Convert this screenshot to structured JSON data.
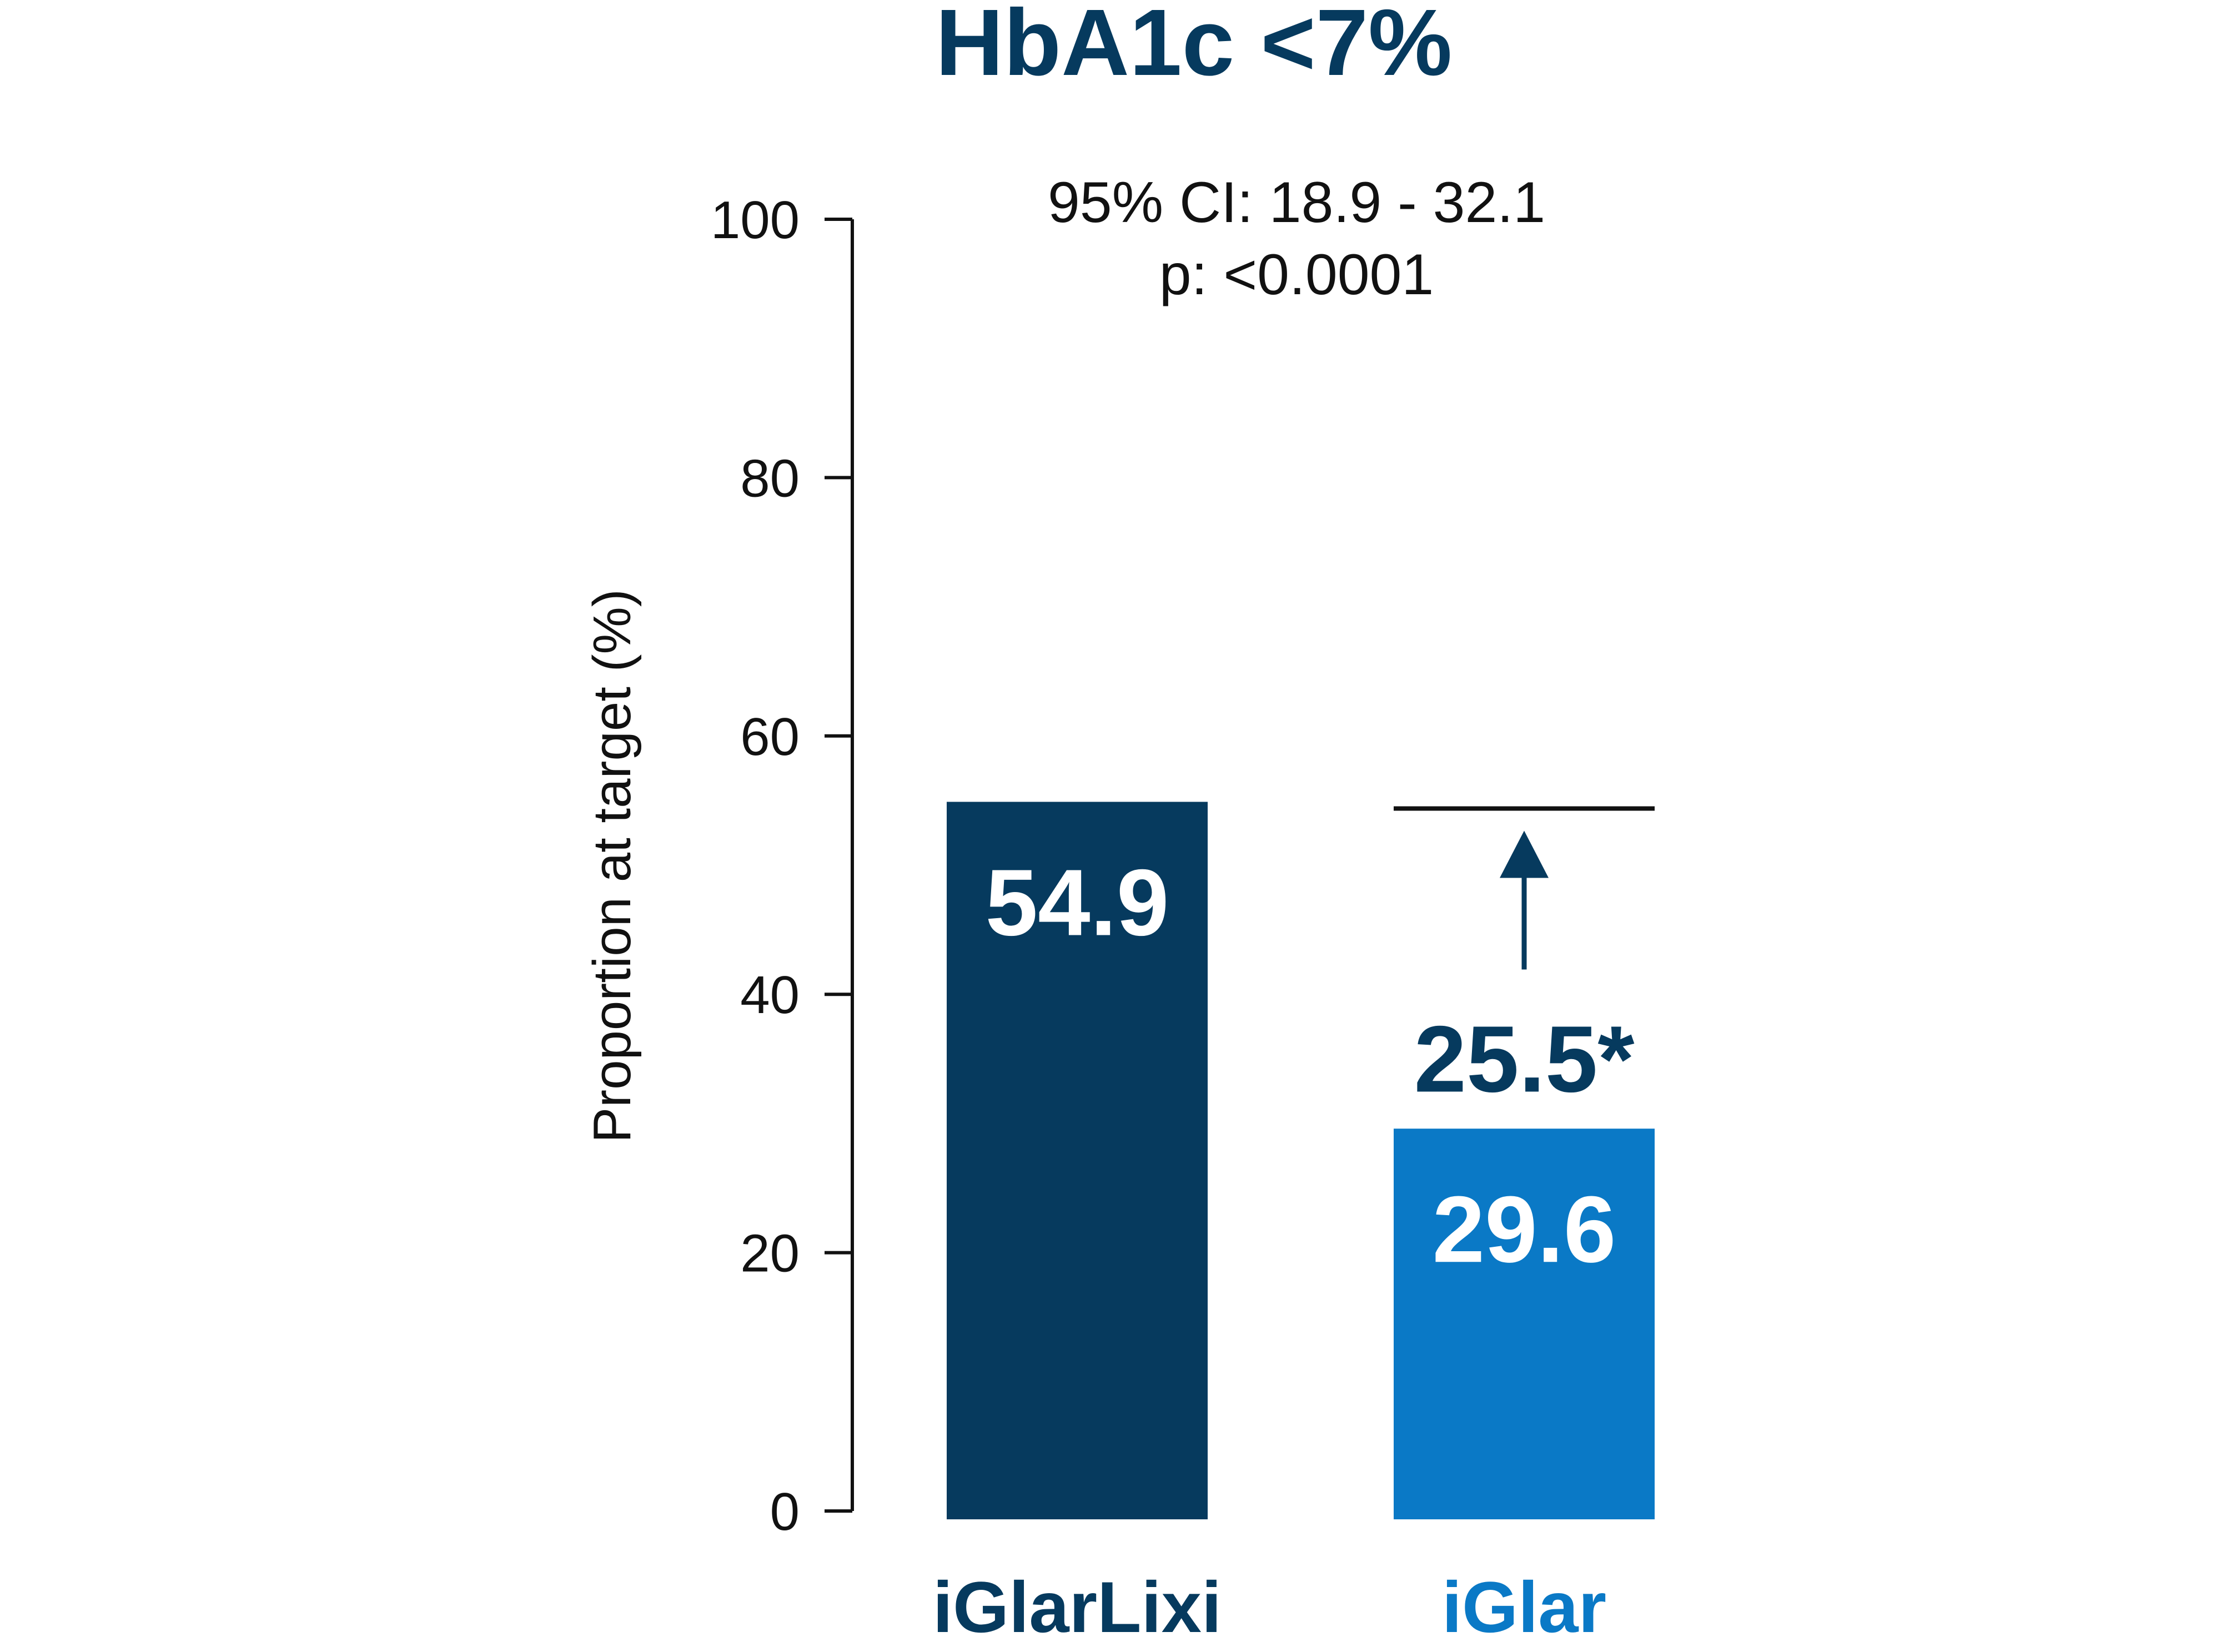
{
  "chart_data": {
    "type": "bar",
    "title": "HbA1c <7%",
    "annotation_lines": [
      "95% CI: 18.9 - 32.1",
      "p: <0.0001"
    ],
    "ylabel": "Proportion at target (%)",
    "ylim": [
      0,
      100
    ],
    "yticks": [
      0,
      20,
      40,
      60,
      80,
      100
    ],
    "tick_labels": [
      "0",
      "20",
      "40",
      "60",
      "80",
      "100"
    ],
    "grid": false,
    "categories": [
      "iGlarLixi",
      "iGlar"
    ],
    "values": [
      54.9,
      29.6
    ],
    "value_labels": [
      "54.9",
      "29.6"
    ],
    "colors": [
      "#063a5e",
      "#0a79c6"
    ],
    "difference": {
      "label": "25.5*",
      "value": 25.5,
      "from_category": "iGlar",
      "to_category": "iGlarLixi"
    },
    "title_color": "#063a5e",
    "diff_color": "#063a5e"
  }
}
